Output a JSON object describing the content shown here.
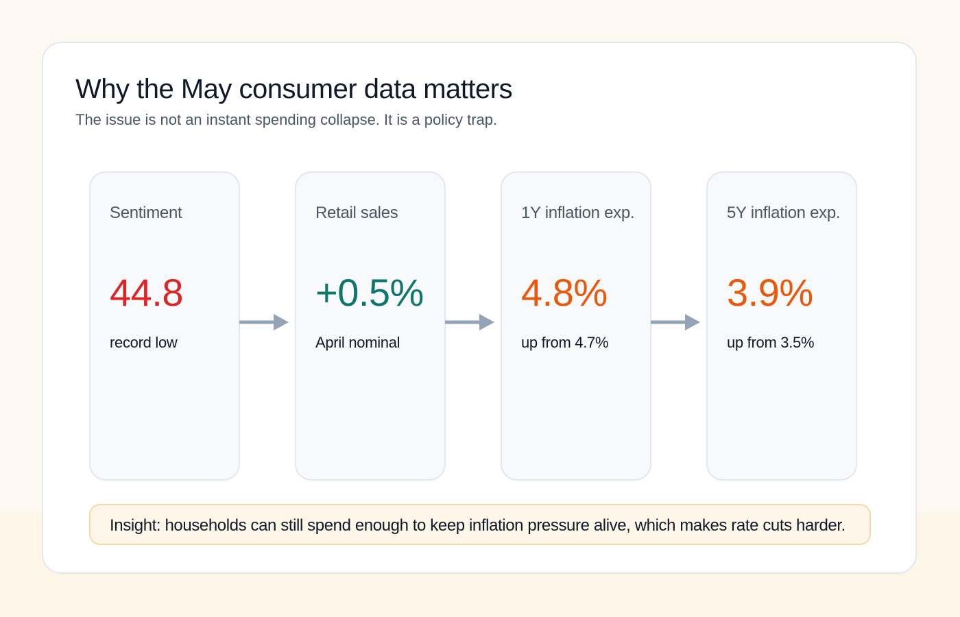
{
  "header": {
    "title": "Why the May consumer data matters",
    "subtitle": "The issue is not an instant spending collapse. It is a policy trap."
  },
  "metrics": [
    {
      "label": "Sentiment",
      "value": "44.8",
      "note": "record low",
      "color": "#dc2626"
    },
    {
      "label": "Retail sales",
      "value": "+0.5%",
      "note": "April nominal",
      "color": "#0f766e"
    },
    {
      "label": "1Y inflation exp.",
      "value": "4.8%",
      "note": "up from 4.7%",
      "color": "#ea580c"
    },
    {
      "label": "5Y inflation exp.",
      "value": "3.9%",
      "note": "up from 3.5%",
      "color": "#ea580c"
    }
  ],
  "insight": {
    "text": "Insight: households can still spend enough to keep inflation pressure alive, which makes rate cuts harder."
  },
  "colors": {
    "arrow": "#94a3b8",
    "panel_border": "#e3e7ef",
    "insight_border": "#f6d9a8",
    "insight_background": "#fdf6e9"
  }
}
